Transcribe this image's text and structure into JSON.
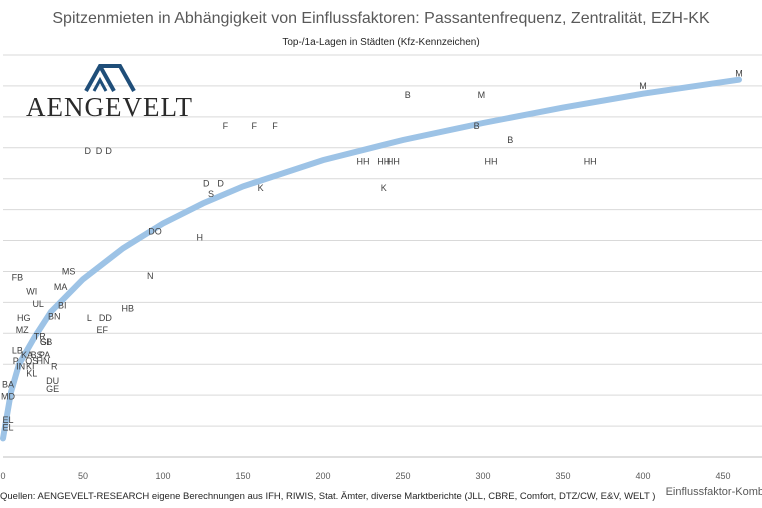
{
  "title": "Spitzenmieten in Abhängigkeit von Einflussfaktoren: Passantenfrequenz, Zentralität, EZH-KK",
  "subtitle": "Top-/1a-Lagen in Städten (Kfz-Kennzeichen)",
  "logo_text": "AENGEVELT",
  "source": "Quellen: AENGEVELT-RESEARCH eigene Berechnungen aus IFH, RIWIS, Stat. Ämter, diverse Marktberichte (JLL, CBRE, Comfort, DTZ/CW, E&V, WELT )",
  "colors": {
    "trend": "#9dc3e6",
    "grid": "#d9d9d9",
    "logo": "#1f4e79"
  },
  "chart_data": {
    "type": "scatter",
    "title": "Spitzenmieten in Abhängigkeit von Einflussfaktoren: Passantenfrequenz, Zentralität, EZH-KK",
    "subtitle": "Top-/1a-Lagen in Städten (Kfz-Kennzeichen)",
    "xlabel": "Einflussfaktor-Komb",
    "ylabel": "",
    "xlim": [
      0,
      470
    ],
    "ylim": [
      0,
      13
    ],
    "x_ticks": [
      0,
      50,
      100,
      150,
      200,
      250,
      300,
      350,
      400,
      450
    ],
    "y_grid_count": 13,
    "grid": "horizontal",
    "y_tick_labels_visible": false,
    "trendline": "logarithmic",
    "points": [
      {
        "label": "M",
        "x": 460,
        "y": 12.4
      },
      {
        "label": "M",
        "x": 400,
        "y": 12.0
      },
      {
        "label": "M",
        "x": 299,
        "y": 11.7
      },
      {
        "label": "B",
        "x": 253,
        "y": 11.7
      },
      {
        "label": "B",
        "x": 296,
        "y": 10.7
      },
      {
        "label": "B",
        "x": 317,
        "y": 10.25
      },
      {
        "label": "F",
        "x": 139,
        "y": 10.7
      },
      {
        "label": "F",
        "x": 157,
        "y": 10.7
      },
      {
        "label": "F",
        "x": 170,
        "y": 10.7
      },
      {
        "label": "D",
        "x": 53,
        "y": 9.9
      },
      {
        "label": "D",
        "x": 60,
        "y": 9.9
      },
      {
        "label": "D",
        "x": 66,
        "y": 9.9
      },
      {
        "label": "HH",
        "x": 225,
        "y": 9.55
      },
      {
        "label": "HH",
        "x": 238,
        "y": 9.55
      },
      {
        "label": "HH",
        "x": 244,
        "y": 9.55
      },
      {
        "label": "HH",
        "x": 305,
        "y": 9.55
      },
      {
        "label": "HH",
        "x": 367,
        "y": 9.55
      },
      {
        "label": "D",
        "x": 127,
        "y": 8.85
      },
      {
        "label": "D",
        "x": 136,
        "y": 8.85
      },
      {
        "label": "S",
        "x": 130,
        "y": 8.5
      },
      {
        "label": "K",
        "x": 161,
        "y": 8.7
      },
      {
        "label": "K",
        "x": 238,
        "y": 8.7
      },
      {
        "label": "DO",
        "x": 95,
        "y": 7.3
      },
      {
        "label": "H",
        "x": 123,
        "y": 7.1
      },
      {
        "label": "N",
        "x": 92,
        "y": 5.85
      },
      {
        "label": "MS",
        "x": 41,
        "y": 6.0
      },
      {
        "label": "FB",
        "x": 9,
        "y": 5.8
      },
      {
        "label": "WI",
        "x": 18,
        "y": 5.35
      },
      {
        "label": "MA",
        "x": 36,
        "y": 5.5
      },
      {
        "label": "UL",
        "x": 22,
        "y": 4.95
      },
      {
        "label": "BI",
        "x": 37,
        "y": 4.9
      },
      {
        "label": "HB",
        "x": 78,
        "y": 4.8
      },
      {
        "label": "BN",
        "x": 32,
        "y": 4.55
      },
      {
        "label": "HG",
        "x": 13,
        "y": 4.5
      },
      {
        "label": "L",
        "x": 54,
        "y": 4.5
      },
      {
        "label": "DD",
        "x": 64,
        "y": 4.5
      },
      {
        "label": "MZ",
        "x": 12,
        "y": 4.1
      },
      {
        "label": "EF",
        "x": 62,
        "y": 4.1
      },
      {
        "label": "TR",
        "x": 23,
        "y": 3.9
      },
      {
        "label": "GI",
        "x": 26,
        "y": 3.72
      },
      {
        "label": "SB",
        "x": 27,
        "y": 3.72
      },
      {
        "label": "LB",
        "x": 9,
        "y": 3.45
      },
      {
        "label": "KA",
        "x": 15,
        "y": 3.3
      },
      {
        "label": "BS",
        "x": 21,
        "y": 3.3
      },
      {
        "label": "PA",
        "x": 26,
        "y": 3.3
      },
      {
        "label": "P",
        "x": 8,
        "y": 3.1
      },
      {
        "label": "OS",
        "x": 18,
        "y": 3.1
      },
      {
        "label": "HN",
        "x": 25,
        "y": 3.1
      },
      {
        "label": "IN",
        "x": 11,
        "y": 2.92
      },
      {
        "label": "KI",
        "x": 17,
        "y": 2.92
      },
      {
        "label": "R",
        "x": 32,
        "y": 2.92
      },
      {
        "label": "KL",
        "x": 18,
        "y": 2.7
      },
      {
        "label": "DU",
        "x": 31,
        "y": 2.45
      },
      {
        "label": "GE",
        "x": 31,
        "y": 2.2
      },
      {
        "label": "BA",
        "x": 1,
        "y": 2.35
      },
      {
        "label": "MD",
        "x": 2,
        "y": 1.95
      },
      {
        "label": "EL",
        "x": 0,
        "y": 1.2
      },
      {
        "label": "EL",
        "x": 1,
        "y": 0.95
      }
    ],
    "trend_points": [
      {
        "x": 0,
        "y": 0.6
      },
      {
        "x": 5,
        "y": 2.1
      },
      {
        "x": 10,
        "y": 3.0
      },
      {
        "x": 20,
        "y": 3.9
      },
      {
        "x": 30,
        "y": 4.7
      },
      {
        "x": 50,
        "y": 5.75
      },
      {
        "x": 75,
        "y": 6.75
      },
      {
        "x": 100,
        "y": 7.55
      },
      {
        "x": 125,
        "y": 8.2
      },
      {
        "x": 150,
        "y": 8.75
      },
      {
        "x": 200,
        "y": 9.6
      },
      {
        "x": 250,
        "y": 10.25
      },
      {
        "x": 300,
        "y": 10.8
      },
      {
        "x": 350,
        "y": 11.3
      },
      {
        "x": 400,
        "y": 11.75
      },
      {
        "x": 460,
        "y": 12.2
      }
    ]
  }
}
